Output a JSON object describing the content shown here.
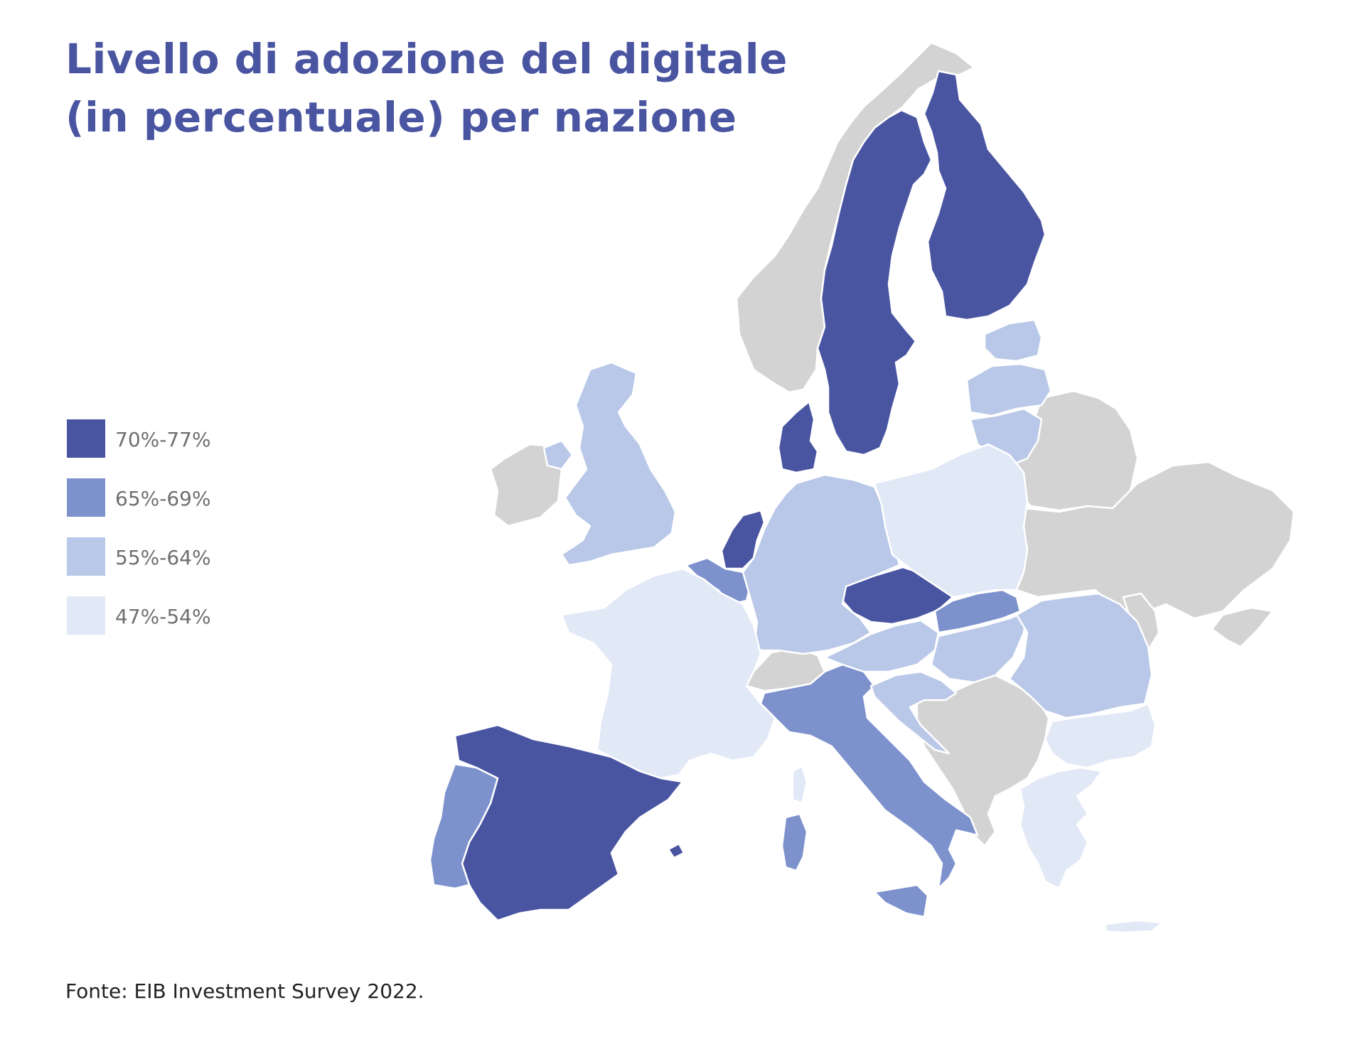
{
  "title": {
    "line1": "Livello di adozione del digitale",
    "line2": "(in percentuale) per nazione"
  },
  "legend": [
    {
      "label": "70%-77%",
      "color": "#4a55a2"
    },
    {
      "label": "65%-69%",
      "color": "#7d92cd"
    },
    {
      "label": "55%-64%",
      "color": "#b9c8e8"
    },
    {
      "label": "47%-54%",
      "color": "#e1e8f6"
    }
  ],
  "colors": {
    "no_data": "#d3d3d3",
    "tier_70_77": "#4a55a2",
    "tier_65_69": "#7d92cd",
    "tier_55_64": "#b9c8e8",
    "tier_47_54": "#e1e8f6"
  },
  "source": "Fonte: EIB Investment Survey 2022."
}
